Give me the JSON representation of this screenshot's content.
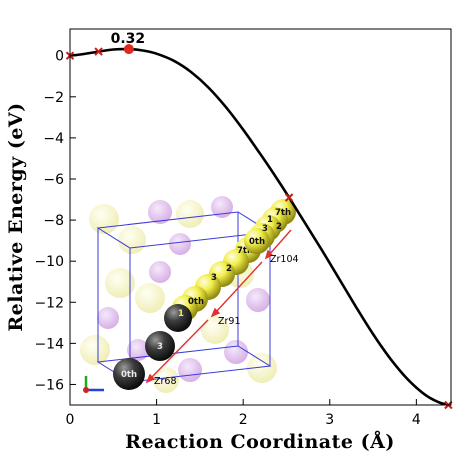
{
  "chart_data": {
    "type": "line",
    "xlabel": "Reaction Coordinate (Å)",
    "ylabel": "Relative Energy (eV)",
    "xlim": [
      0,
      4.4
    ],
    "ylim": [
      -17,
      1.3
    ],
    "x_ticks": [
      "0",
      "1",
      "2",
      "3",
      "4"
    ],
    "y_ticks": [
      "0",
      "−2",
      "−4",
      "−6",
      "−8",
      "−10",
      "−12",
      "−14",
      "−16"
    ],
    "curve": {
      "x": [
        0,
        0.15,
        0.33,
        0.5,
        0.68,
        0.85,
        1.0,
        1.2,
        1.4,
        1.6,
        1.8,
        2.0,
        2.2,
        2.4,
        2.53,
        2.7,
        2.9,
        3.1,
        3.3,
        3.5,
        3.7,
        3.9,
        4.1,
        4.25,
        4.37
      ],
      "y": [
        0.0,
        0.08,
        0.2,
        0.3,
        0.32,
        0.25,
        0.1,
        -0.25,
        -0.8,
        -1.55,
        -2.5,
        -3.6,
        -4.8,
        -6.05,
        -6.9,
        -8.05,
        -9.4,
        -10.8,
        -12.2,
        -13.55,
        -14.75,
        -15.75,
        -16.5,
        -16.85,
        -17.0
      ]
    },
    "images": [
      {
        "x": 0,
        "y": 0
      },
      {
        "x": 0.33,
        "y": 0.2
      },
      {
        "x": 0.68,
        "y": 0.32
      },
      {
        "x": 2.53,
        "y": -6.9
      },
      {
        "x": 4.37,
        "y": -17.0
      }
    ],
    "transition_state": {
      "x": 0.68,
      "y": 0.32,
      "label": "0.32"
    },
    "grid": false,
    "legend": "none"
  },
  "inset": {
    "site_labels": [
      "Zr104",
      "Zr91",
      "Zr68"
    ],
    "atom_labels": {
      "top": [
        "0th",
        "1",
        "2",
        "3",
        "7th"
      ],
      "middle": [
        "0th",
        "1",
        "2",
        "3",
        "7th"
      ],
      "bottom": [
        "0th",
        "3"
      ]
    },
    "colors": {
      "path_atom": "#e9e62a",
      "start_atom": "#3a3a3a",
      "faded_zr": "#f3f0b0",
      "faded_o": "#d7a9e6",
      "cell": "#3b3bd8",
      "arrow": "#e03030",
      "marker": "#c0201a",
      "ts_marker": "#e0281e"
    },
    "icon": "axes-triad-icon"
  }
}
